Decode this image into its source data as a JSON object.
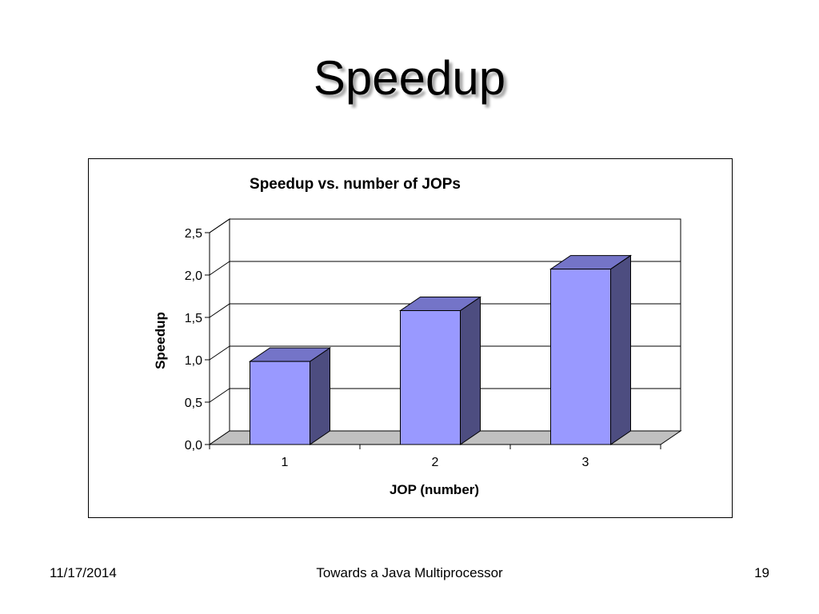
{
  "slide": {
    "title": "Speedup",
    "footer_date": "11/17/2014",
    "footer_title": "Towards a Java Multiprocessor",
    "page_number": "19"
  },
  "chart_data": {
    "type": "bar",
    "title": "Speedup vs. number of JOPs",
    "xlabel": "JOP (number)",
    "ylabel": "Speedup",
    "categories": [
      "1",
      "2",
      "3"
    ],
    "values": [
      0.98,
      1.58,
      2.07
    ],
    "ylim": [
      0,
      2.5
    ],
    "yticks": [
      "0,0",
      "0,5",
      "1,0",
      "1,5",
      "2,0",
      "2,5"
    ],
    "style": "3d-column",
    "grid": true,
    "legend": "none",
    "colors": {
      "bar_front": "#9999ff",
      "bar_side": "#4d4d80",
      "bar_top": "#7474c8",
      "floor": "#c0c0c0"
    }
  }
}
